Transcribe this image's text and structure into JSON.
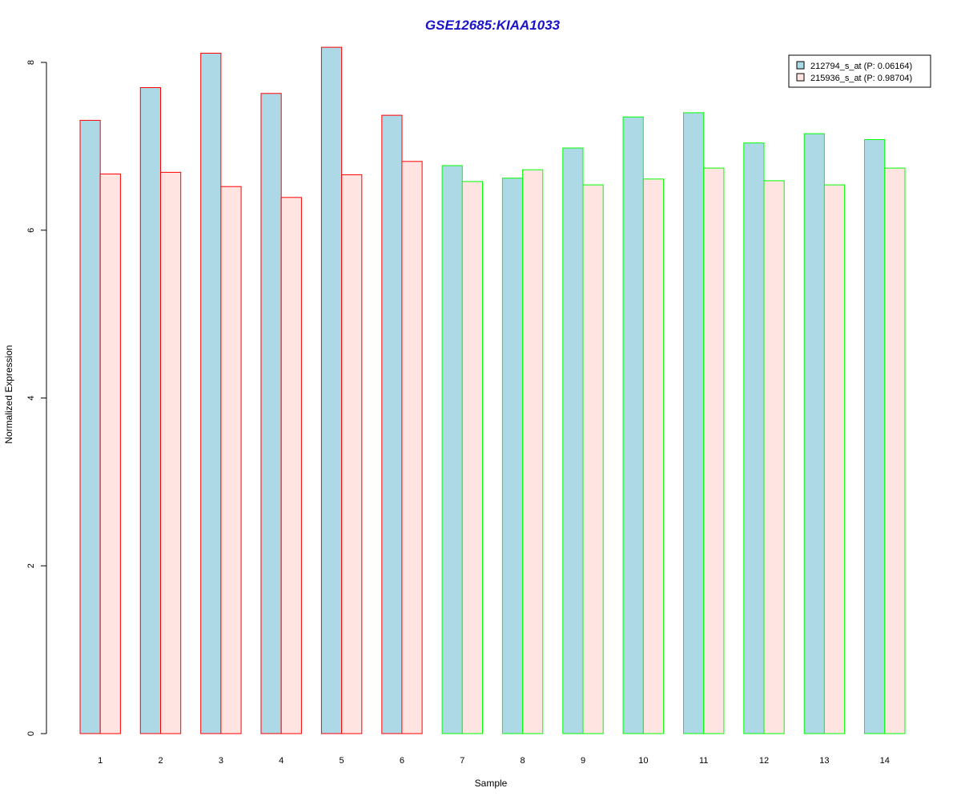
{
  "chart_data": {
    "type": "bar",
    "title": "GSE12685:KIAA1033",
    "xlabel": "Sample",
    "ylabel": "Normalized Expression",
    "categories": [
      "1",
      "2",
      "3",
      "4",
      "5",
      "6",
      "7",
      "8",
      "9",
      "10",
      "11",
      "12",
      "13",
      "14"
    ],
    "yticks": [
      "0",
      "2",
      "4",
      "6",
      "8"
    ],
    "ylim": [
      0,
      8.6
    ],
    "grid": false,
    "legend_position": "top-right",
    "series": [
      {
        "name": "212794_s_at (P: 0.06164)",
        "fill": "#add8e6",
        "values": [
          7.31,
          7.7,
          8.11,
          7.63,
          8.18,
          7.37,
          6.77,
          6.62,
          6.98,
          7.35,
          7.4,
          7.04,
          7.15,
          7.08
        ]
      },
      {
        "name": "215936_s_at (P: 0.98704)",
        "fill": "#ffe4e1",
        "values": [
          6.67,
          6.69,
          6.52,
          6.39,
          6.66,
          6.82,
          6.58,
          6.72,
          6.54,
          6.61,
          6.74,
          6.59,
          6.54,
          6.74
        ]
      }
    ],
    "group_borders": [
      "#ff0000",
      "#ff0000",
      "#ff0000",
      "#ff0000",
      "#ff0000",
      "#ff0000",
      "#00ff00",
      "#00ff00",
      "#00ff00",
      "#00ff00",
      "#00ff00",
      "#00ff00",
      "#00ff00",
      "#00ff00"
    ]
  }
}
